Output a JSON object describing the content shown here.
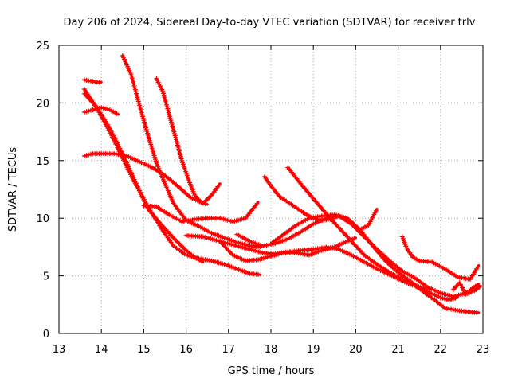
{
  "chart_data": {
    "type": "scatter",
    "title": "Day 206 of 2024, Sidereal Day-to-day VTEC variation (SDTVAR) for receiver trlv",
    "xlabel": "GPS time / hours",
    "ylabel": "SDTVAR / TECUs",
    "xlim": [
      13,
      23
    ],
    "ylim": [
      0,
      25
    ],
    "xticks": [
      "13",
      "14",
      "15",
      "16",
      "17",
      "18",
      "19",
      "20",
      "21",
      "22",
      "23"
    ],
    "yticks": [
      "0",
      "5",
      "10",
      "15",
      "20",
      "25"
    ],
    "grid": true,
    "marker_color": "#ff0000",
    "series": [
      {
        "name": "s1",
        "x": [
          13.6,
          13.75,
          13.9,
          14.0
        ],
        "y": [
          22.0,
          21.9,
          21.8,
          21.8
        ]
      },
      {
        "name": "s2",
        "x": [
          13.6,
          13.8,
          14.0,
          14.2,
          14.4
        ],
        "y": [
          19.2,
          19.4,
          19.6,
          19.4,
          19.0
        ]
      },
      {
        "name": "s3",
        "x": [
          13.6,
          13.8,
          14.0,
          14.3,
          14.6,
          14.9,
          15.2,
          15.5,
          15.8,
          16.1,
          16.4,
          16.6,
          16.8
        ],
        "y": [
          15.4,
          15.6,
          15.6,
          15.6,
          15.4,
          14.9,
          14.4,
          13.7,
          12.8,
          11.8,
          11.3,
          12.0,
          13.0
        ]
      },
      {
        "name": "s4",
        "x": [
          13.6,
          13.9,
          14.2,
          14.5,
          14.8,
          15.1,
          15.4,
          15.7,
          16.0,
          16.3,
          16.6,
          16.9,
          17.2,
          17.5,
          17.75
        ],
        "y": [
          21.2,
          19.5,
          17.5,
          15.2,
          13.0,
          11.0,
          9.2,
          7.6,
          6.8,
          6.5,
          6.3,
          6.0,
          5.6,
          5.2,
          5.1
        ]
      },
      {
        "name": "s5",
        "x": [
          13.6,
          13.9,
          14.2,
          14.5,
          14.8,
          15.1,
          15.4,
          15.7,
          16.0,
          16.2,
          16.4
        ],
        "y": [
          20.8,
          19.6,
          17.8,
          15.6,
          13.2,
          10.8,
          9.5,
          8.3,
          7.2,
          6.6,
          6.2
        ]
      },
      {
        "name": "s6",
        "x": [
          14.5,
          14.7,
          14.9,
          15.1,
          15.3,
          15.5,
          15.7,
          16.0,
          16.3,
          16.6,
          16.9,
          17.2,
          17.5,
          17.8
        ],
        "y": [
          24.1,
          22.5,
          19.8,
          17.2,
          14.8,
          13.0,
          11.3,
          9.8,
          9.3,
          8.7,
          8.3,
          7.9,
          7.6,
          7.5
        ]
      },
      {
        "name": "s7",
        "x": [
          15.3,
          15.45,
          15.6,
          15.75,
          15.9,
          16.05,
          16.2,
          16.35,
          16.5
        ],
        "y": [
          22.1,
          21.0,
          19.0,
          17.0,
          15.0,
          13.4,
          12.0,
          11.4,
          11.2
        ]
      },
      {
        "name": "s8",
        "x": [
          15.0,
          15.3,
          15.6,
          15.9,
          16.2,
          16.5,
          16.8,
          17.1,
          17.4,
          17.7
        ],
        "y": [
          11.1,
          11.0,
          10.3,
          9.7,
          9.9,
          10.0,
          10.0,
          9.7,
          10.0,
          11.4
        ]
      },
      {
        "name": "s9",
        "x": [
          16.0,
          16.4,
          16.8,
          17.2,
          17.5,
          17.8,
          18.1,
          18.4,
          18.7,
          19.0,
          19.3,
          19.6,
          19.9,
          20.2,
          20.5,
          20.8,
          21.2,
          21.6,
          22.0,
          22.2,
          22.4
        ],
        "y": [
          8.5,
          8.4,
          8.0,
          7.6,
          7.3,
          7.0,
          6.9,
          7.1,
          7.2,
          7.3,
          7.5,
          7.3,
          6.8,
          6.2,
          5.6,
          5.1,
          4.4,
          3.8,
          3.1,
          2.9,
          3.1
        ]
      },
      {
        "name": "s10",
        "x": [
          16.8,
          17.1,
          17.4,
          17.7,
          18.0,
          18.3,
          18.6,
          18.9,
          19.2,
          19.5,
          19.8,
          20.0
        ],
        "y": [
          8.0,
          6.8,
          6.3,
          6.4,
          6.7,
          7.0,
          7.0,
          6.8,
          7.2,
          7.5,
          8.0,
          8.3
        ]
      },
      {
        "name": "s11",
        "x": [
          17.2,
          17.5,
          17.8,
          18.1,
          18.4,
          18.7,
          19.0,
          19.3,
          19.6,
          19.9,
          20.2,
          20.5,
          20.8,
          21.1,
          21.4,
          21.7,
          22.0,
          22.3,
          22.6,
          22.9
        ],
        "y": [
          8.6,
          8.0,
          7.6,
          7.8,
          8.2,
          8.8,
          9.5,
          10.0,
          10.2,
          9.5,
          8.4,
          7.3,
          6.3,
          5.4,
          4.8,
          4.0,
          3.5,
          3.2,
          3.5,
          4.3
        ]
      },
      {
        "name": "s12",
        "x": [
          17.85,
          18.0,
          18.2,
          18.4,
          18.6,
          18.8,
          19.0,
          19.2,
          19.4,
          19.6,
          19.8,
          20.1,
          20.3,
          20.5
        ],
        "y": [
          13.6,
          12.8,
          11.9,
          11.4,
          10.9,
          10.4,
          10.0,
          9.8,
          9.9,
          10.2,
          9.8,
          9.0,
          9.4,
          10.8
        ]
      },
      {
        "name": "s13",
        "x": [
          18.4,
          18.7,
          19.0,
          19.3,
          19.6,
          19.9,
          20.2,
          20.5,
          20.8,
          21.1,
          21.4,
          21.6,
          21.8
        ],
        "y": [
          14.4,
          13.0,
          11.7,
          10.4,
          9.2,
          8.0,
          6.8,
          6.0,
          5.3,
          4.7,
          4.2,
          3.9,
          3.9
        ]
      },
      {
        "name": "s14",
        "x": [
          18.0,
          18.3,
          18.6,
          18.9,
          19.2,
          19.5,
          19.8,
          20.1,
          20.4,
          20.7,
          21.0,
          21.3,
          21.6,
          21.9,
          22.1,
          22.4,
          22.6,
          22.9
        ],
        "y": [
          7.8,
          8.6,
          9.4,
          10.0,
          10.2,
          10.3,
          10.0,
          9.0,
          7.6,
          6.3,
          5.3,
          4.5,
          3.6,
          2.8,
          2.2,
          2.0,
          1.9,
          1.8
        ]
      },
      {
        "name": "s15",
        "x": [
          21.1,
          21.2,
          21.35,
          21.5,
          21.8,
          22.1,
          22.4,
          22.7,
          22.9
        ],
        "y": [
          8.4,
          7.4,
          6.6,
          6.3,
          6.2,
          5.6,
          4.9,
          4.7,
          5.9
        ]
      },
      {
        "name": "s16",
        "x": [
          22.3,
          22.45,
          22.6,
          22.8,
          22.95
        ],
        "y": [
          3.8,
          4.4,
          3.4,
          3.7,
          4.1
        ]
      }
    ]
  }
}
